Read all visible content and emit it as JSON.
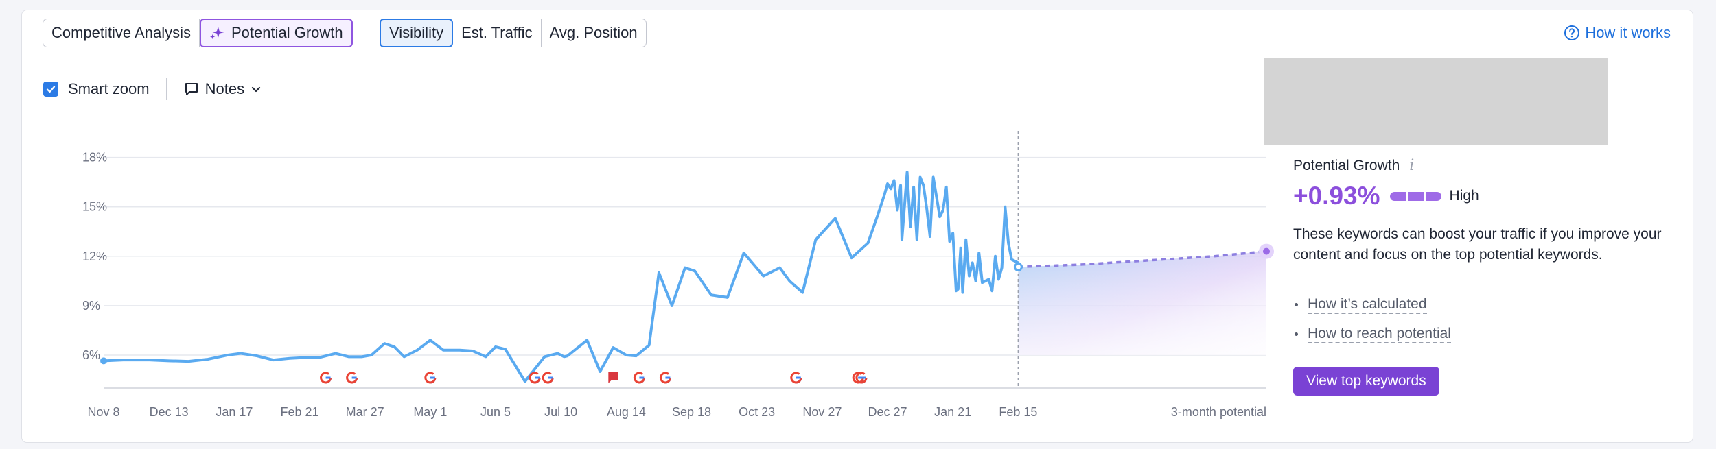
{
  "tabs_left": [
    {
      "label": "Competitive Analysis",
      "active": false
    },
    {
      "label": "Potential Growth",
      "active": true
    }
  ],
  "tabs_metric": [
    {
      "label": "Visibility",
      "active": true
    },
    {
      "label": "Est. Traffic",
      "active": false
    },
    {
      "label": "Avg. Position",
      "active": false
    }
  ],
  "how_it_works": "How it works",
  "controls": {
    "smart_zoom": "Smart zoom",
    "smart_zoom_checked": true,
    "notes": "Notes"
  },
  "panel": {
    "title": "Potential Growth",
    "info": "i",
    "value": "+0.93%",
    "level": "High",
    "description": "These keywords can boost your traffic if you improve your content and focus on the top potential keywords.",
    "links": [
      "How it’s calculated",
      "How to reach potential"
    ],
    "cta": "View top keywords"
  },
  "colors": {
    "line": "#5aaaf0",
    "accent_purple": "#8c4fdc",
    "accent_blue": "#2c7be5",
    "cta": "#7a42d4"
  },
  "chart_data": {
    "type": "line",
    "title": "",
    "xlabel": "",
    "ylabel": "",
    "y_ticks": [
      "18%",
      "15%",
      "12%",
      "9%",
      "6%"
    ],
    "y_tick_values": [
      18,
      15,
      12,
      9,
      6
    ],
    "ylim": [
      4,
      19.4
    ],
    "x_ticks": [
      "Nov 8",
      "Dec 13",
      "Jan 17",
      "Feb 21",
      "Mar 27",
      "May 1",
      "Jun 5",
      "Jul 10",
      "Aug 14",
      "Sep 18",
      "Oct 23",
      "Nov 27",
      "Dec 27",
      "Jan 21",
      "Feb 15"
    ],
    "x_tick_positions": [
      0,
      1,
      2,
      3,
      4,
      5,
      6,
      7,
      8,
      9,
      10,
      11,
      12,
      13,
      14
    ],
    "potential_label": "3-month potential",
    "x_max": 17.8,
    "grid": true,
    "series": [
      {
        "x": [
          0,
          0.3,
          0.7,
          1,
          1.3,
          1.6,
          1.9,
          2.1,
          2.35,
          2.6,
          2.85,
          3.1,
          3.3,
          3.55,
          3.75,
          3.95,
          4.1,
          4.3,
          4.45,
          4.6,
          4.8,
          5.0,
          5.2,
          5.45,
          5.65,
          5.85,
          6.0,
          6.15,
          6.45,
          6.75,
          6.95,
          7.05,
          7.1,
          7.4,
          7.6,
          7.8,
          8.0,
          8.15,
          8.35,
          8.5,
          8.7,
          8.9,
          9.05,
          9.3,
          9.55,
          9.8,
          10.1,
          10.35,
          10.5,
          10.7,
          10.9,
          11.2,
          11.45,
          11.7,
          11.85,
          11.95,
          12.0,
          12.05,
          12.1,
          12.15,
          12.2,
          12.22,
          12.3,
          12.35,
          12.4,
          12.45,
          12.5,
          12.55,
          12.6,
          12.65,
          12.7,
          12.8,
          12.85,
          12.9,
          12.95,
          13.0,
          13.05,
          13.08,
          13.12,
          13.15,
          13.2,
          13.25,
          13.3,
          13.35,
          13.4,
          13.45,
          13.55,
          13.6,
          13.65,
          13.7,
          13.75,
          13.8,
          13.85,
          13.9,
          14.0
        ],
        "values": [
          5.65,
          5.7,
          5.7,
          5.65,
          5.62,
          5.75,
          6.0,
          6.1,
          5.95,
          5.7,
          5.8,
          5.85,
          5.85,
          6.1,
          5.9,
          5.9,
          6.0,
          6.7,
          6.5,
          5.9,
          6.3,
          6.9,
          6.3,
          6.3,
          6.25,
          5.9,
          6.5,
          6.35,
          4.4,
          5.9,
          6.1,
          5.9,
          5.95,
          6.9,
          5.0,
          6.45,
          6.0,
          5.95,
          6.6,
          11.0,
          9.0,
          11.3,
          11.1,
          9.65,
          9.5,
          12.2,
          10.8,
          11.3,
          10.5,
          9.8,
          13.0,
          14.3,
          11.9,
          12.8,
          14.5,
          15.7,
          16.4,
          16.1,
          16.6,
          14.8,
          16.3,
          13.0,
          17.1,
          13.8,
          16.2,
          13.0,
          16.8,
          16.3,
          14.9,
          13.2,
          16.8,
          14.4,
          14.8,
          16.2,
          12.9,
          13.4,
          9.9,
          10.0,
          12.5,
          9.8,
          13.0,
          10.8,
          11.6,
          10.5,
          12.2,
          10.4,
          10.6,
          9.9,
          12.0,
          10.6,
          11.3,
          15.0,
          12.8,
          11.8,
          11.6
        ]
      },
      {
        "name": "3-month potential",
        "x": [
          14,
          15,
          16,
          17,
          17.8
        ],
        "values": [
          11.35,
          11.5,
          11.75,
          12.0,
          12.3
        ]
      }
    ],
    "potential_area_bottom": 6.0,
    "event_markers": [
      {
        "x": 3.4,
        "type": "google"
      },
      {
        "x": 3.8,
        "type": "google"
      },
      {
        "x": 5.0,
        "type": "google"
      },
      {
        "x": 6.6,
        "type": "google"
      },
      {
        "x": 6.8,
        "type": "google"
      },
      {
        "x": 7.8,
        "type": "flag"
      },
      {
        "x": 8.2,
        "type": "google"
      },
      {
        "x": 8.6,
        "type": "google"
      },
      {
        "x": 10.6,
        "type": "google"
      },
      {
        "x": 11.55,
        "type": "google"
      },
      {
        "x": 11.6,
        "type": "google"
      }
    ]
  }
}
